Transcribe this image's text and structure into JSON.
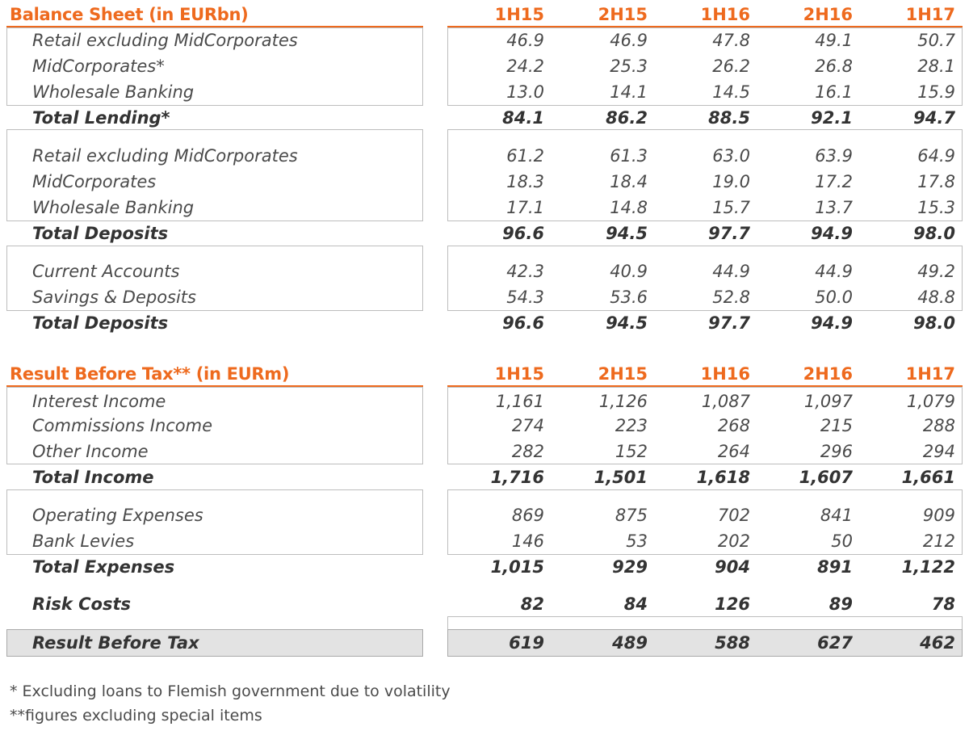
{
  "columns": [
    "1H15",
    "2H15",
    "1H16",
    "2H16",
    "1H17"
  ],
  "balance_sheet": {
    "title": "Balance Sheet (in EURbn)",
    "rows": [
      {
        "label": "Retail excluding MidCorporates",
        "values": [
          "46.9",
          "46.9",
          "47.8",
          "49.1",
          "50.7"
        ]
      },
      {
        "label": "MidCorporates*",
        "values": [
          "24.2",
          "25.3",
          "26.2",
          "26.8",
          "28.1"
        ]
      },
      {
        "label": "Wholesale Banking",
        "values": [
          "13.0",
          "14.1",
          "14.5",
          "16.1",
          "15.9"
        ]
      },
      {
        "label": "Total Lending*",
        "values": [
          "84.1",
          "86.2",
          "88.5",
          "92.1",
          "94.7"
        ],
        "bold": true
      },
      {
        "label": "Retail excluding MidCorporates",
        "values": [
          "61.2",
          "61.3",
          "63.0",
          "63.9",
          "64.9"
        ]
      },
      {
        "label": "MidCorporates",
        "values": [
          "18.3",
          "18.4",
          "19.0",
          "17.2",
          "17.8"
        ]
      },
      {
        "label": "Wholesale Banking",
        "values": [
          "17.1",
          "14.8",
          "15.7",
          "13.7",
          "15.3"
        ]
      },
      {
        "label": "Total Deposits",
        "values": [
          "96.6",
          "94.5",
          "97.7",
          "94.9",
          "98.0"
        ],
        "bold": true
      },
      {
        "label": "Current Accounts",
        "values": [
          "42.3",
          "40.9",
          "44.9",
          "44.9",
          "49.2"
        ]
      },
      {
        "label": "Savings & Deposits",
        "values": [
          "54.3",
          "53.6",
          "52.8",
          "50.0",
          "48.8"
        ]
      },
      {
        "label": "Total Deposits",
        "values": [
          "96.6",
          "94.5",
          "97.7",
          "94.9",
          "98.0"
        ],
        "bold": true
      }
    ]
  },
  "result_before_tax": {
    "title": "Result Before Tax** (in EURm)",
    "rows": [
      {
        "label": "Interest Income",
        "values": [
          "1,161",
          "1,126",
          "1,087",
          "1,097",
          "1,079"
        ]
      },
      {
        "label": "Commissions Income",
        "values": [
          "274",
          "223",
          "268",
          "215",
          "288"
        ]
      },
      {
        "label": "Other Income",
        "values": [
          "282",
          "152",
          "264",
          "296",
          "294"
        ]
      },
      {
        "label": "Total Income",
        "values": [
          "1,716",
          "1,501",
          "1,618",
          "1,607",
          "1,661"
        ],
        "bold": true
      },
      {
        "label": "Operating Expenses",
        "values": [
          "869",
          "875",
          "702",
          "841",
          "909"
        ]
      },
      {
        "label": "Bank Levies",
        "values": [
          "146",
          "53",
          "202",
          "50",
          "212"
        ]
      },
      {
        "label": "Total Expenses",
        "values": [
          "1,015",
          "929",
          "904",
          "891",
          "1,122"
        ],
        "bold": true
      },
      {
        "label": "Risk Costs",
        "values": [
          "82",
          "84",
          "126",
          "89",
          "78"
        ],
        "bold": true
      },
      {
        "label": "Result Before Tax",
        "values": [
          "619",
          "489",
          "588",
          "627",
          "462"
        ],
        "bold": true
      }
    ]
  },
  "footnotes": [
    "* Excluding loans to Flemish government due to volatility",
    "**figures excluding special items"
  ],
  "colors": {
    "accent": "#ee6a1e",
    "highlight_fill": "#e3e3e3",
    "border": "#bdbdbd"
  }
}
